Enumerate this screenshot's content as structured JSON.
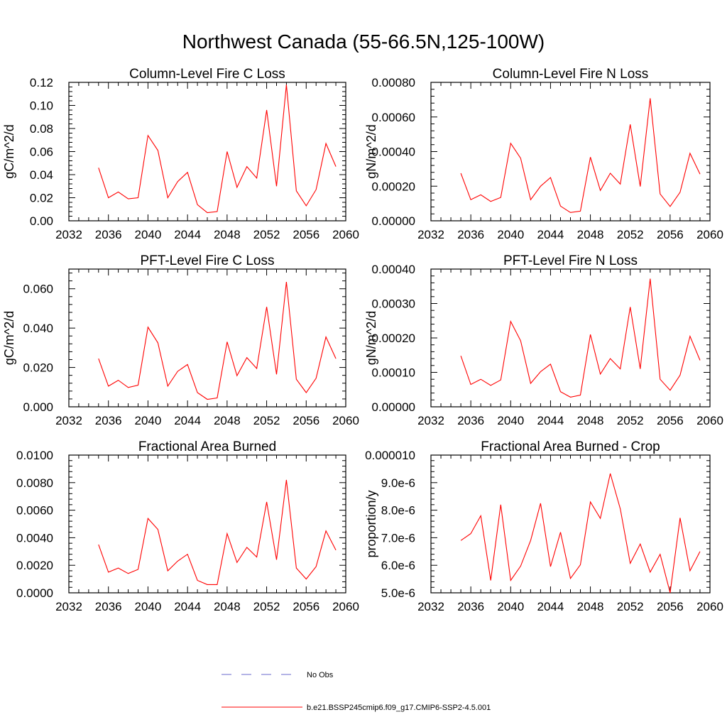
{
  "figure": {
    "title": "Northwest Canada (55-66.5N,125-100W)",
    "line_color": "#ff0000",
    "obs_color": "#6a6acd"
  },
  "legend": {
    "placement": "bottom-center",
    "items": [
      {
        "label": "No Obs",
        "color": "#6a6acd",
        "style": "dashed"
      },
      {
        "label": "b.e21.BSSP245cmip6.f09_g17.CMIP6-SSP2-4.5.001",
        "color": "#ff0000",
        "style": "solid"
      }
    ]
  },
  "chart_data": [
    {
      "type": "line",
      "title": "Column-Level Fire C Loss",
      "xlabel": "",
      "ylabel": "gC/m^2/d",
      "xlim": [
        2032,
        2060
      ],
      "ylim": [
        0,
        0.12
      ],
      "xticks": [
        "2032",
        "2036",
        "2040",
        "2044",
        "2048",
        "2052",
        "2056",
        "2060"
      ],
      "yticks": [
        "0.00",
        "0.02",
        "0.04",
        "0.06",
        "0.08",
        "0.10",
        "0.12"
      ],
      "grid": false,
      "x": [
        2035,
        2036,
        2037,
        2038,
        2039,
        2040,
        2041,
        2042,
        2043,
        2044,
        2045,
        2046,
        2047,
        2048,
        2049,
        2050,
        2051,
        2052,
        2053,
        2054,
        2055,
        2056,
        2057,
        2058,
        2059
      ],
      "series": [
        {
          "values": [
            0.046,
            0.02,
            0.025,
            0.019,
            0.02,
            0.074,
            0.061,
            0.02,
            0.034,
            0.042,
            0.014,
            0.007,
            0.008,
            0.06,
            0.029,
            0.047,
            0.037,
            0.096,
            0.03,
            0.118,
            0.026,
            0.013,
            0.027,
            0.067,
            0.047
          ]
        }
      ]
    },
    {
      "type": "line",
      "title": "Column-Level Fire N Loss",
      "xlabel": "",
      "ylabel": "gN/m^2/d",
      "xlim": [
        2032,
        2060
      ],
      "ylim": [
        0,
        0.0008
      ],
      "xticks": [
        "2032",
        "2036",
        "2040",
        "2044",
        "2048",
        "2052",
        "2056",
        "2060"
      ],
      "yticks": [
        "0.00000",
        "0.00020",
        "0.00040",
        "0.00060",
        "0.00080"
      ],
      "grid": false,
      "x": [
        2035,
        2036,
        2037,
        2038,
        2039,
        2040,
        2041,
        2042,
        2043,
        2044,
        2045,
        2046,
        2047,
        2048,
        2049,
        2050,
        2051,
        2052,
        2053,
        2054,
        2055,
        2056,
        2057,
        2058,
        2059
      ],
      "series": [
        {
          "values": [
            0.000275,
            0.000122,
            0.00015,
            0.000112,
            0.000135,
            0.000448,
            0.000362,
            0.000122,
            0.0002,
            0.00025,
            8.5e-05,
            4.8e-05,
            5.6e-05,
            0.000368,
            0.000175,
            0.000275,
            0.000212,
            0.000557,
            0.000198,
            0.000708,
            0.000155,
            8.3e-05,
            0.000165,
            0.00039,
            0.00027
          ]
        }
      ]
    },
    {
      "type": "line",
      "title": "PFT-Level Fire C Loss",
      "xlabel": "",
      "ylabel": "gC/m^2/d",
      "xlim": [
        2032,
        2060
      ],
      "ylim": [
        0,
        0.07
      ],
      "xticks": [
        "2032",
        "2036",
        "2040",
        "2044",
        "2048",
        "2052",
        "2056",
        "2060"
      ],
      "yticks": [
        "0.000",
        "0.020",
        "0.040",
        "0.060"
      ],
      "grid": false,
      "x": [
        2035,
        2036,
        2037,
        2038,
        2039,
        2040,
        2041,
        2042,
        2043,
        2044,
        2045,
        2046,
        2047,
        2048,
        2049,
        2050,
        2051,
        2052,
        2053,
        2054,
        2055,
        2056,
        2057,
        2058,
        2059
      ],
      "series": [
        {
          "values": [
            0.0245,
            0.0105,
            0.0135,
            0.0098,
            0.011,
            0.0405,
            0.0325,
            0.0105,
            0.018,
            0.0215,
            0.0072,
            0.0038,
            0.0045,
            0.033,
            0.0158,
            0.025,
            0.0195,
            0.0508,
            0.0165,
            0.0635,
            0.014,
            0.0072,
            0.0145,
            0.0355,
            0.0245
          ]
        }
      ]
    },
    {
      "type": "line",
      "title": "PFT-Level Fire N Loss",
      "xlabel": "",
      "ylabel": "gN/m^2/d",
      "xlim": [
        2032,
        2060
      ],
      "ylim": [
        0,
        0.0004
      ],
      "xticks": [
        "2032",
        "2036",
        "2040",
        "2044",
        "2048",
        "2052",
        "2056",
        "2060"
      ],
      "yticks": [
        "0.00000",
        "0.00010",
        "0.00020",
        "0.00030",
        "0.00040"
      ],
      "grid": false,
      "x": [
        2035,
        2036,
        2037,
        2038,
        2039,
        2040,
        2041,
        2042,
        2043,
        2044,
        2045,
        2046,
        2047,
        2048,
        2049,
        2050,
        2051,
        2052,
        2053,
        2054,
        2055,
        2056,
        2057,
        2058,
        2059
      ],
      "series": [
        {
          "values": [
            0.000148,
            6.5e-05,
            8e-05,
            6.2e-05,
            7.8e-05,
            0.000248,
            0.000192,
            6.8e-05,
            0.000102,
            0.000124,
            4.4e-05,
            2.8e-05,
            3.4e-05,
            0.00021,
            9.5e-05,
            0.00014,
            0.00011,
            0.00029,
            0.00011,
            0.000372,
            8e-05,
            4.8e-05,
            9.2e-05,
            0.000205,
            0.000135
          ]
        }
      ]
    },
    {
      "type": "line",
      "title": "Fractional Area Burned",
      "xlabel": "",
      "ylabel": "",
      "xlim": [
        2032,
        2060
      ],
      "ylim": [
        0,
        0.01
      ],
      "xticks": [
        "2032",
        "2036",
        "2040",
        "2044",
        "2048",
        "2052",
        "2056",
        "2060"
      ],
      "yticks": [
        "0.0000",
        "0.0020",
        "0.0040",
        "0.0060",
        "0.0080",
        "0.0100"
      ],
      "grid": false,
      "x": [
        2035,
        2036,
        2037,
        2038,
        2039,
        2040,
        2041,
        2042,
        2043,
        2044,
        2045,
        2046,
        2047,
        2048,
        2049,
        2050,
        2051,
        2052,
        2053,
        2054,
        2055,
        2056,
        2057,
        2058,
        2059
      ],
      "series": [
        {
          "values": [
            0.0035,
            0.0015,
            0.0018,
            0.0014,
            0.0017,
            0.0054,
            0.0046,
            0.0016,
            0.0023,
            0.0028,
            0.0009,
            0.0006,
            0.0006,
            0.0043,
            0.0022,
            0.0033,
            0.0026,
            0.0066,
            0.0024,
            0.0082,
            0.0018,
            0.001,
            0.0019,
            0.0045,
            0.0031
          ]
        }
      ]
    },
    {
      "type": "line",
      "title": "Fractional Area Burned - Crop",
      "xlabel": "",
      "ylabel": "proportion/y",
      "xlim": [
        2032,
        2060
      ],
      "ylim": [
        5e-06,
        1e-05
      ],
      "xticks": [
        "2032",
        "2036",
        "2040",
        "2044",
        "2048",
        "2052",
        "2056",
        "2060"
      ],
      "yticks": [
        "5.0e-6",
        "6.0e-6",
        "7.0e-6",
        "8.0e-6",
        "9.0e-6",
        "0.000010"
      ],
      "grid": false,
      "x": [
        2035,
        2036,
        2037,
        2038,
        2039,
        2040,
        2041,
        2042,
        2043,
        2044,
        2045,
        2046,
        2047,
        2048,
        2049,
        2050,
        2051,
        2052,
        2053,
        2054,
        2055,
        2056,
        2057,
        2058,
        2059
      ],
      "series": [
        {
          "values": [
            6.9e-06,
            7.15e-06,
            7.8e-06,
            5.45e-06,
            8.2e-06,
            5.45e-06,
            5.97e-06,
            6.9e-06,
            8.25e-06,
            5.95e-06,
            7.2e-06,
            5.52e-06,
            6.02e-06,
            8.3e-06,
            7.7e-06,
            9.33e-06,
            8.05e-06,
            6.07e-06,
            6.77e-06,
            5.75e-06,
            6.4e-06,
            5e-06,
            7.72e-06,
            5.8e-06,
            6.5e-06
          ]
        }
      ]
    }
  ]
}
